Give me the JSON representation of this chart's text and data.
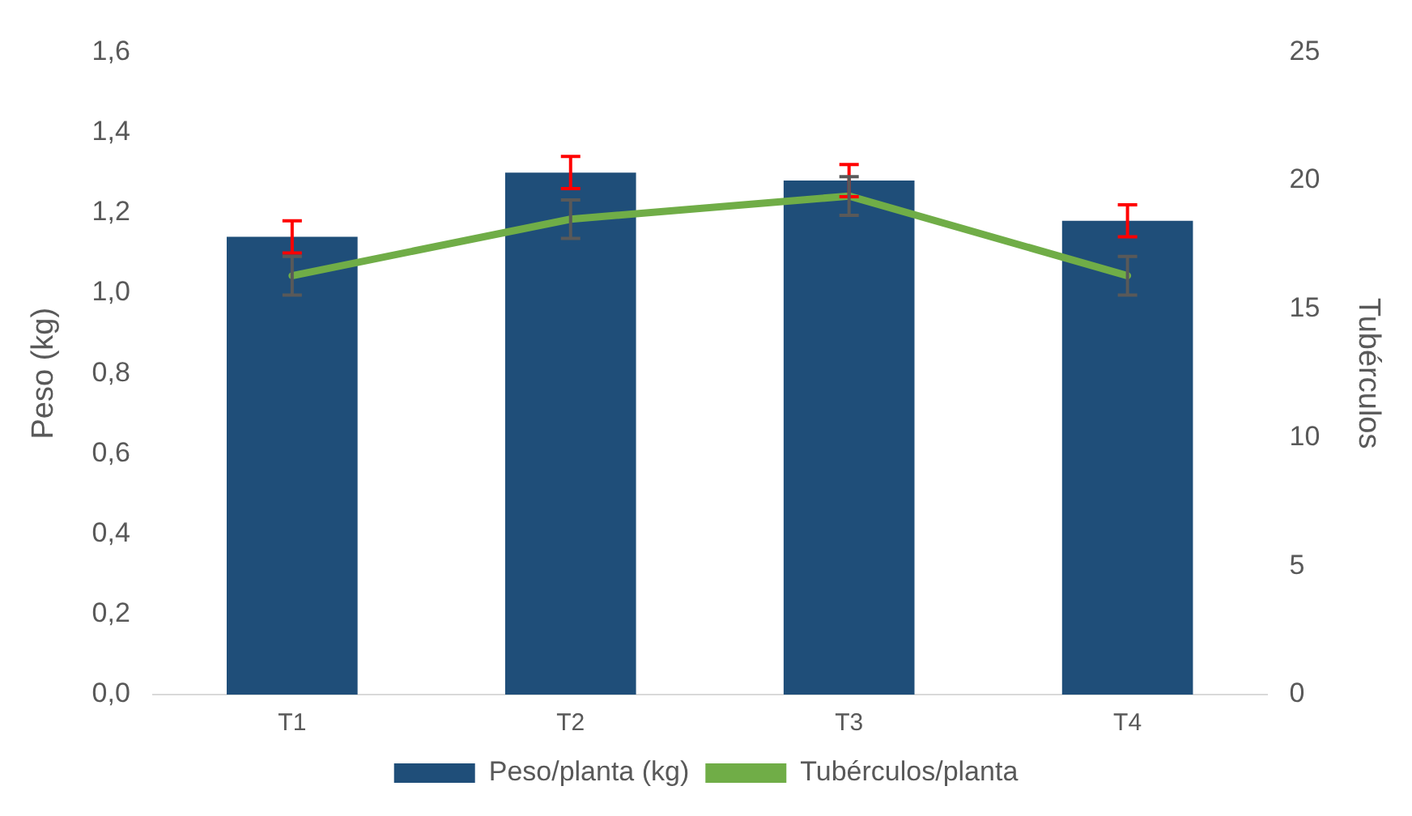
{
  "chart_data": {
    "type": "bar",
    "categories": [
      "T1",
      "T2",
      "T3",
      "T4"
    ],
    "series": [
      {
        "name": "Peso/planta (kg)",
        "color": "#1f4e79",
        "values": [
          1.14,
          1.3,
          1.28,
          1.18
        ],
        "errors": [
          0.04,
          0.04,
          0.04,
          0.04
        ]
      },
      {
        "name": "Tubérculos/planta",
        "type": "line",
        "axis": "y2",
        "color": "#70ad47",
        "values": [
          16.3,
          18.5,
          19.4,
          16.3
        ],
        "errors": [
          0.75,
          0.75,
          0.75,
          0.75
        ]
      }
    ],
    "ylabel": "Peso (kg)",
    "y2label": "Tubérculos",
    "ylim": [
      0,
      1.6
    ],
    "yticks": [
      {
        "value": 0,
        "label": "0,0"
      },
      {
        "value": 0.2,
        "label": "0,2"
      },
      {
        "value": 0.4,
        "label": "0,4"
      },
      {
        "value": 0.6,
        "label": "0,6"
      },
      {
        "value": 0.8,
        "label": "0,8"
      },
      {
        "value": 1,
        "label": "1,0"
      },
      {
        "value": 1.2,
        "label": "1,2"
      },
      {
        "value": 1.4,
        "label": "1,4"
      },
      {
        "value": 1.6,
        "label": "1,6"
      }
    ],
    "y2lim": [
      0,
      25
    ],
    "y2ticks": [
      0,
      5,
      10,
      15,
      20,
      25
    ],
    "grid": false,
    "legend": "bottom",
    "marker": "none"
  }
}
